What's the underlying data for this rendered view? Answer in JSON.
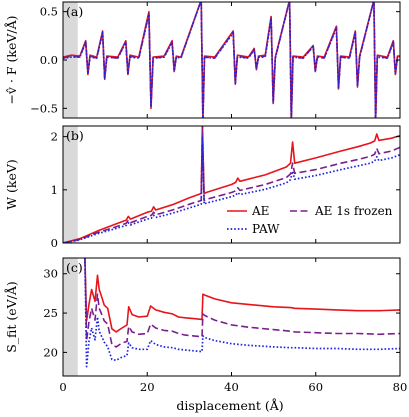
{
  "chart_data": [
    {
      "panel_label": "(a)",
      "type": "line",
      "ylabel": "−v̂ · F (keV/Å)",
      "ylim": [
        -0.6,
        0.6
      ],
      "yticks": [
        -0.5,
        0.0,
        0.5
      ],
      "ytick_labels": [
        "−0.5",
        "0.0",
        "0.5"
      ],
      "series": [
        {
          "key": "ae",
          "color": "#e8141c",
          "dash": "solid",
          "x": [
            0,
            2,
            4,
            5.4,
            5.9,
            6.4,
            8,
            9.4,
            9.9,
            10.4,
            13,
            14.9,
            15.4,
            15.9,
            18,
            20.4,
            20.9,
            21.4,
            24,
            25.9,
            26.4,
            26.9,
            28,
            32.8,
            33.2,
            33.6,
            36,
            40.4,
            40.9,
            41.4,
            44,
            45.4,
            45.9,
            46.4,
            48,
            49.4,
            49.9,
            50.4,
            53.8,
            54.2,
            54.6,
            57,
            59.4,
            59.9,
            60.4,
            62,
            64.9,
            65.4,
            65.9,
            68,
            69.4,
            69.9,
            70.4,
            73.8,
            74.2,
            74.6,
            77,
            78.4,
            78.9,
            79.4,
            80
          ],
          "y": [
            0.03,
            0.05,
            0.04,
            0.2,
            -0.15,
            0.05,
            0.03,
            0.3,
            -0.2,
            0.04,
            0.03,
            0.2,
            -0.15,
            0.05,
            0.03,
            0.5,
            -0.5,
            0.03,
            0.04,
            0.2,
            -0.12,
            0.04,
            0.03,
            0.62,
            -0.62,
            0.04,
            0.03,
            0.3,
            -0.25,
            0.05,
            0.03,
            0.12,
            -0.1,
            0.04,
            0.05,
            0.45,
            -0.45,
            0.03,
            0.62,
            -0.62,
            0.04,
            0.03,
            0.15,
            -0.12,
            0.04,
            0.03,
            0.35,
            -0.3,
            0.04,
            0.03,
            0.3,
            -0.28,
            0.04,
            0.62,
            -0.62,
            0.05,
            0.03,
            0.2,
            -0.15,
            0.04,
            0.04
          ]
        },
        {
          "key": "ae1s",
          "color": "#7a1f8c",
          "dash": "dashed",
          "x": [
            0,
            2,
            4,
            5.4,
            5.9,
            6.4,
            8,
            9.4,
            9.9,
            10.4,
            13,
            14.9,
            15.4,
            15.9,
            18,
            20.4,
            20.9,
            21.4,
            24,
            25.9,
            26.4,
            26.9,
            28,
            32.8,
            33.2,
            33.6,
            36,
            40.4,
            40.9,
            41.4,
            44,
            45.4,
            45.9,
            46.4,
            48,
            49.4,
            49.9,
            50.4,
            53.8,
            54.2,
            54.6,
            57,
            59.4,
            59.9,
            60.4,
            62,
            64.9,
            65.4,
            65.9,
            68,
            69.4,
            69.9,
            70.4,
            73.8,
            74.2,
            74.6,
            77,
            78.4,
            78.9,
            79.4,
            80
          ],
          "y": [
            0.02,
            0.04,
            0.03,
            0.19,
            -0.14,
            0.04,
            0.02,
            0.29,
            -0.19,
            0.03,
            0.02,
            0.19,
            -0.14,
            0.04,
            0.02,
            0.48,
            -0.48,
            0.02,
            0.03,
            0.19,
            -0.11,
            0.03,
            0.02,
            0.62,
            -0.62,
            0.03,
            0.02,
            0.29,
            -0.24,
            0.04,
            0.02,
            0.11,
            -0.09,
            0.03,
            0.04,
            0.44,
            -0.44,
            0.02,
            0.62,
            -0.62,
            0.03,
            0.02,
            0.14,
            -0.11,
            0.03,
            0.02,
            0.34,
            -0.29,
            0.03,
            0.02,
            0.29,
            -0.27,
            0.03,
            0.62,
            -0.62,
            0.04,
            0.02,
            0.19,
            -0.14,
            0.03,
            0.03
          ]
        },
        {
          "key": "paw",
          "color": "#1f24e0",
          "dash": "dotted",
          "x": [
            0,
            2,
            4,
            5.4,
            5.9,
            6.4,
            8,
            9.4,
            9.9,
            10.4,
            13,
            14.9,
            15.4,
            15.9,
            18,
            20.4,
            20.9,
            21.4,
            24,
            25.9,
            26.4,
            26.9,
            28,
            32.8,
            33.2,
            33.6,
            36,
            40.4,
            40.9,
            41.4,
            44,
            45.4,
            45.9,
            46.4,
            48,
            49.4,
            49.9,
            50.4,
            53.8,
            54.2,
            54.6,
            57,
            59.4,
            59.9,
            60.4,
            62,
            64.9,
            65.4,
            65.9,
            68,
            69.4,
            69.9,
            70.4,
            73.8,
            74.2,
            74.6,
            77,
            78.4,
            78.9,
            79.4,
            80
          ],
          "y": [
            0.02,
            0.03,
            0.03,
            0.18,
            -0.14,
            0.03,
            0.02,
            0.28,
            -0.19,
            0.03,
            0.02,
            0.18,
            -0.14,
            0.03,
            0.02,
            0.47,
            -0.47,
            0.02,
            0.03,
            0.18,
            -0.11,
            0.03,
            0.02,
            0.62,
            -0.62,
            0.03,
            0.02,
            0.28,
            -0.24,
            0.03,
            0.02,
            0.11,
            -0.09,
            0.03,
            0.03,
            0.43,
            -0.43,
            0.02,
            0.62,
            -0.62,
            0.03,
            0.02,
            0.14,
            -0.11,
            0.03,
            0.02,
            0.33,
            -0.29,
            0.03,
            0.02,
            0.28,
            -0.27,
            0.03,
            0.62,
            -0.62,
            0.03,
            0.02,
            0.18,
            -0.14,
            0.03,
            0.03
          ]
        }
      ]
    },
    {
      "panel_label": "(b)",
      "type": "line",
      "ylabel": "W (keV)",
      "ylim": [
        0,
        2.2
      ],
      "yticks": [
        0,
        1,
        2
      ],
      "ytick_labels": [
        "0",
        "1",
        "2"
      ],
      "legend": {
        "placement": "lower-right",
        "entries": [
          {
            "key": "ae",
            "label": "AE"
          },
          {
            "key": "ae1s",
            "label": "AE 1s frozen"
          },
          {
            "key": "paw",
            "label": "PAW"
          }
        ]
      },
      "series": [
        {
          "key": "ae",
          "name": "AE",
          "color": "#e8141c",
          "dash": "solid",
          "x": [
            0,
            4,
            8,
            12,
            15,
            15.5,
            16,
            20,
            21,
            21.5,
            22,
            26,
            30,
            32.8,
            33.1,
            33.5,
            34,
            40,
            41,
            41.5,
            42,
            48,
            53,
            54,
            54.5,
            55,
            60,
            66,
            70,
            73,
            74,
            74.5,
            75,
            78,
            80
          ],
          "y": [
            0,
            0.08,
            0.22,
            0.34,
            0.43,
            0.5,
            0.45,
            0.58,
            0.6,
            0.68,
            0.62,
            0.72,
            0.85,
            0.93,
            2.2,
            0.93,
            0.95,
            1.1,
            1.14,
            1.22,
            1.16,
            1.28,
            1.43,
            1.5,
            1.9,
            1.5,
            1.6,
            1.73,
            1.81,
            1.88,
            1.92,
            2.05,
            1.93,
            1.97,
            2.02
          ]
        },
        {
          "key": "ae1s",
          "name": "AE 1s frozen",
          "color": "#7a1f8c",
          "dash": "dashed",
          "x": [
            0,
            4,
            8,
            12,
            15,
            15.5,
            16,
            20,
            21,
            21.5,
            22,
            26,
            30,
            32.8,
            33.1,
            33.5,
            34,
            40,
            41,
            41.5,
            42,
            48,
            53,
            54,
            54.5,
            55,
            60,
            66,
            70,
            73,
            74,
            74.5,
            75,
            78,
            80
          ],
          "y": [
            0,
            0.07,
            0.19,
            0.29,
            0.37,
            0.43,
            0.38,
            0.5,
            0.52,
            0.58,
            0.53,
            0.62,
            0.73,
            0.8,
            2.2,
            0.8,
            0.82,
            0.95,
            0.98,
            1.04,
            0.99,
            1.1,
            1.23,
            1.3,
            1.5,
            1.31,
            1.38,
            1.5,
            1.57,
            1.63,
            1.67,
            1.78,
            1.68,
            1.73,
            1.8
          ]
        },
        {
          "key": "paw",
          "name": "PAW",
          "color": "#1f24e0",
          "dash": "dotted",
          "x": [
            0,
            4,
            8,
            12,
            15,
            15.5,
            16,
            20,
            21,
            21.5,
            22,
            26,
            30,
            32.8,
            33.1,
            33.5,
            34,
            40,
            41,
            41.5,
            42,
            48,
            53,
            54,
            54.5,
            55,
            60,
            66,
            70,
            73,
            74,
            74.5,
            75,
            78,
            80
          ],
          "y": [
            0,
            0.06,
            0.17,
            0.26,
            0.33,
            0.38,
            0.34,
            0.45,
            0.47,
            0.52,
            0.48,
            0.56,
            0.66,
            0.73,
            2.0,
            0.73,
            0.75,
            0.87,
            0.9,
            0.95,
            0.91,
            1.01,
            1.13,
            1.19,
            1.35,
            1.2,
            1.27,
            1.38,
            1.45,
            1.5,
            1.54,
            1.62,
            1.55,
            1.6,
            1.66
          ]
        }
      ]
    },
    {
      "panel_label": "(c)",
      "type": "line",
      "xlabel": "displacement (Å)",
      "ylabel": "S_fit (eV/Å)",
      "ylim": [
        17,
        32
      ],
      "yticks": [
        20,
        25,
        30
      ],
      "ytick_labels": [
        "20",
        "25",
        "30"
      ],
      "xlim": [
        0,
        80
      ],
      "xticks": [
        0,
        20,
        40,
        60,
        80
      ],
      "xtick_labels": [
        "0",
        "20",
        "40",
        "60",
        "80"
      ],
      "series": [
        {
          "key": "ae",
          "color": "#e8141c",
          "dash": "solid",
          "x": [
            5.2,
            5.6,
            6.2,
            6.8,
            7.6,
            8.2,
            8.6,
            9.2,
            9.8,
            10.6,
            11.6,
            12.6,
            14,
            15.2,
            15.6,
            16.4,
            18,
            20,
            20.8,
            22,
            24,
            26,
            27.4,
            29,
            31,
            33,
            33.2,
            33.6,
            36,
            40,
            44,
            50,
            54,
            55,
            60,
            65,
            70,
            75,
            80
          ],
          "y": [
            32,
            24,
            26.2,
            28,
            26.5,
            29.8,
            28,
            27,
            26,
            25.6,
            23,
            22.6,
            23.1,
            23.5,
            25.8,
            24.8,
            24.5,
            24.6,
            25.9,
            25.4,
            25.1,
            24.9,
            24.5,
            24.4,
            24.3,
            24.2,
            27.4,
            27.3,
            26.8,
            26.3,
            26.1,
            25.8,
            25.7,
            25.6,
            25.5,
            25.4,
            25.3,
            25.3,
            25.4
          ]
        },
        {
          "key": "ae1s",
          "color": "#7a1f8c",
          "dash": "dashed",
          "x": [
            5.2,
            5.6,
            6.2,
            6.8,
            7.6,
            8.2,
            8.6,
            9.2,
            9.8,
            10.6,
            11.6,
            12.6,
            14,
            15.2,
            15.6,
            16.4,
            18,
            20,
            20.8,
            22,
            24,
            26,
            27.4,
            29,
            31,
            33,
            33.2,
            33.6,
            36,
            40,
            44,
            50,
            54,
            55,
            60,
            65,
            70,
            75,
            80
          ],
          "y": [
            32,
            21.5,
            24,
            25.6,
            24.1,
            27.4,
            25.6,
            24.8,
            24,
            23.6,
            21,
            20.7,
            21.2,
            21.4,
            23.3,
            22.6,
            22.3,
            22.4,
            23.6,
            23.1,
            22.8,
            22.7,
            22.4,
            22.2,
            22.1,
            22,
            24.9,
            24.7,
            24.1,
            23.5,
            23.2,
            22.9,
            22.7,
            22.6,
            22.5,
            22.4,
            22.4,
            22.3,
            22.4
          ]
        },
        {
          "key": "paw",
          "color": "#1f24e0",
          "dash": "dotted",
          "x": [
            5.2,
            5.6,
            6.2,
            6.8,
            7.6,
            8.2,
            8.6,
            9.2,
            9.8,
            10.6,
            11.6,
            12.6,
            14,
            15.2,
            15.6,
            16.4,
            18,
            20,
            20.8,
            22,
            24,
            26,
            27.4,
            29,
            31,
            33,
            33.2,
            33.6,
            36,
            40,
            44,
            50,
            54,
            55,
            60,
            65,
            70,
            75,
            80
          ],
          "y": [
            32,
            18.2,
            21.5,
            23.1,
            21.6,
            24.5,
            22.7,
            22,
            21.3,
            20.7,
            19.1,
            19,
            19.4,
            19.6,
            21.2,
            20.6,
            20.4,
            20.4,
            21.5,
            21,
            20.7,
            20.6,
            20.4,
            20.3,
            20.2,
            20.1,
            22.1,
            21.9,
            21.5,
            21.1,
            20.9,
            20.7,
            20.6,
            20.6,
            20.5,
            20.5,
            20.4,
            20.4,
            20.5
          ]
        }
      ]
    }
  ],
  "shared_x": {
    "xlim": [
      0,
      80
    ],
    "xticks": [
      0,
      20,
      40,
      60,
      80
    ],
    "shaded_region": [
      0,
      3.5
    ],
    "shade_color": "#d9d9d9"
  }
}
